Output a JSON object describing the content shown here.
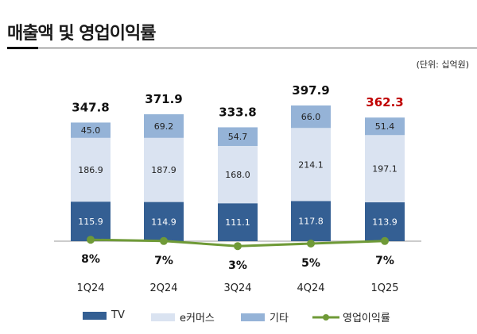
{
  "title": "매출액 및 영업이익률",
  "unit": "(단위: 십억원)",
  "chart_data": {
    "type": "bar",
    "stacked": true,
    "categories": [
      "1Q24",
      "2Q24",
      "3Q24",
      "4Q24",
      "1Q25"
    ],
    "series": [
      {
        "name": "TV",
        "values": [
          115.9,
          114.9,
          111.1,
          117.8,
          113.9
        ],
        "color": "#345f93"
      },
      {
        "name": "e커머스",
        "values": [
          186.9,
          187.9,
          168.0,
          214.1,
          197.1
        ],
        "color": "#dae3f1"
      },
      {
        "name": "기타",
        "values": [
          45.0,
          69.2,
          54.7,
          66.0,
          51.4
        ],
        "color": "#95b3d7"
      }
    ],
    "totals": [
      "347.8",
      "371.9",
      "333.8",
      "397.9",
      "362.3"
    ],
    "total_colors": [
      "#111111",
      "#111111",
      "#111111",
      "#111111",
      "#c00000"
    ],
    "line": {
      "name": "영업이익률",
      "values": [
        8,
        7,
        3,
        5,
        7
      ],
      "labels": [
        "8%",
        "7%",
        "3%",
        "5%",
        "7%"
      ],
      "color": "#6f9a37"
    },
    "legend_position": "bottom",
    "grid": false
  }
}
